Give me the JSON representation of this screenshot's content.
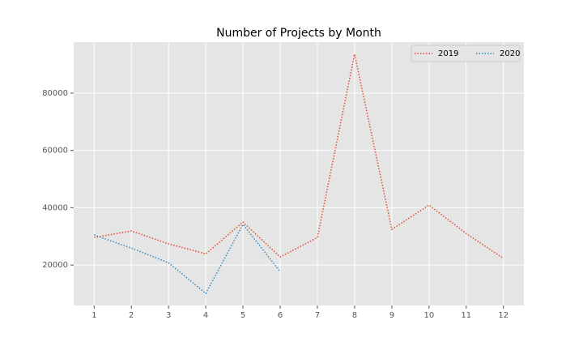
{
  "chart_data": {
    "type": "line",
    "title": "Number of Projects by Month",
    "x": [
      1,
      2,
      3,
      4,
      5,
      6,
      7,
      8,
      9,
      10,
      11,
      12
    ],
    "series": [
      {
        "name": "2019",
        "color": "#E24A33",
        "values": [
          29600,
          31900,
          27400,
          23900,
          35000,
          22800,
          29600,
          93600,
          32450,
          40900,
          31000,
          22300
        ]
      },
      {
        "name": "2020",
        "color": "#348ABD",
        "values": [
          30500,
          25900,
          20800,
          10100,
          34200,
          17700,
          null,
          null,
          null,
          null,
          null,
          null
        ]
      }
    ],
    "xlim": [
      0.45,
      12.55
    ],
    "xticks": [
      1,
      2,
      3,
      4,
      5,
      6,
      7,
      8,
      9,
      10,
      11,
      12
    ],
    "ylim": [
      5900,
      97800
    ],
    "yticks": [
      20000,
      40000,
      60000,
      80000
    ],
    "grid": true,
    "legend": "upper right",
    "line_style": "dotted"
  }
}
